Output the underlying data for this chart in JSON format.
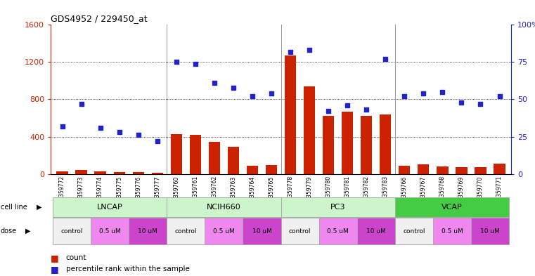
{
  "title": "GDS4952 / 229450_at",
  "samples": [
    "GSM1359772",
    "GSM1359773",
    "GSM1359774",
    "GSM1359775",
    "GSM1359776",
    "GSM1359777",
    "GSM1359760",
    "GSM1359761",
    "GSM1359762",
    "GSM1359763",
    "GSM1359764",
    "GSM1359765",
    "GSM1359778",
    "GSM1359779",
    "GSM1359780",
    "GSM1359781",
    "GSM1359782",
    "GSM1359783",
    "GSM1359766",
    "GSM1359767",
    "GSM1359768",
    "GSM1359769",
    "GSM1359770",
    "GSM1359771"
  ],
  "counts": [
    30,
    40,
    25,
    20,
    18,
    12,
    430,
    420,
    340,
    290,
    90,
    95,
    1270,
    940,
    620,
    670,
    620,
    640,
    90,
    100,
    80,
    75,
    70,
    110
  ],
  "percentiles": [
    32,
    47,
    31,
    28,
    26,
    22,
    75,
    74,
    61,
    58,
    52,
    54,
    82,
    83,
    42,
    46,
    43,
    77,
    52,
    54,
    55,
    48,
    47,
    52
  ],
  "cell_lines": [
    "LNCAP",
    "NCIH660",
    "PC3",
    "VCAP"
  ],
  "cell_line_groups": [
    [
      0,
      5
    ],
    [
      6,
      11
    ],
    [
      12,
      17
    ],
    [
      18,
      23
    ]
  ],
  "cell_line_colors": [
    "#ccf5cc",
    "#ccf5cc",
    "#ccf5cc",
    "#44dd44"
  ],
  "dose_groups": [
    [
      0,
      1,
      "control",
      "#f0f0f0"
    ],
    [
      2,
      3,
      "0.5 uM",
      "#ee88ee"
    ],
    [
      4,
      5,
      "10 uM",
      "#cc44cc"
    ],
    [
      6,
      7,
      "control",
      "#f0f0f0"
    ],
    [
      8,
      9,
      "0.5 uM",
      "#ee88ee"
    ],
    [
      10,
      11,
      "10 uM",
      "#cc44cc"
    ],
    [
      12,
      13,
      "control",
      "#f0f0f0"
    ],
    [
      14,
      15,
      "0.5 uM",
      "#ee88ee"
    ],
    [
      16,
      17,
      "10 uM",
      "#cc44cc"
    ],
    [
      18,
      19,
      "control",
      "#f0f0f0"
    ],
    [
      20,
      21,
      "0.5 uM",
      "#ee88ee"
    ],
    [
      22,
      23,
      "10 uM",
      "#cc44cc"
    ]
  ],
  "bar_color": "#cc2200",
  "dot_color": "#2222cc",
  "ylim_left": [
    0,
    1600
  ],
  "ylim_right": [
    0,
    100
  ],
  "yticks_left": [
    0,
    400,
    800,
    1200,
    1600
  ],
  "yticks_right": [
    0,
    25,
    50,
    75,
    100
  ],
  "background_color": "#ffffff"
}
